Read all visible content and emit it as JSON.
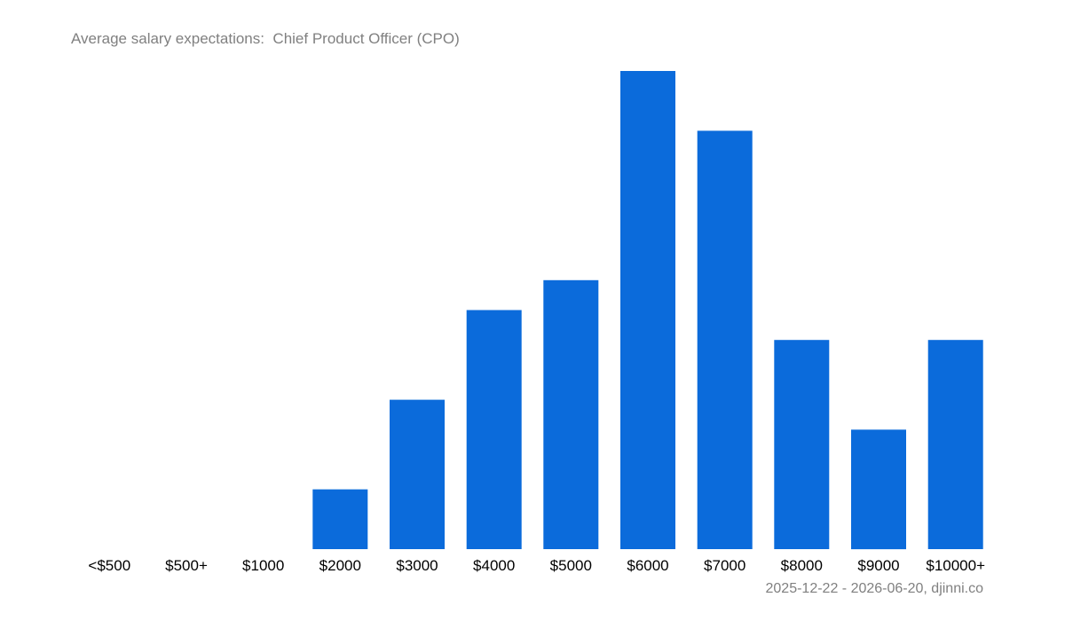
{
  "chart_data": {
    "type": "bar",
    "title": "Average salary expectations:  Chief Product Officer (CPO)",
    "categories": [
      "<$500",
      "$500+",
      "$1000",
      "$2000",
      "$3000",
      "$4000",
      "$5000",
      "$6000",
      "$7000",
      "$8000",
      "$9000",
      "$10000+"
    ],
    "values": [
      0,
      0,
      0,
      2,
      5,
      8,
      9,
      16,
      14,
      7,
      4,
      7
    ],
    "xlabel": "",
    "ylabel": "",
    "ylim": [
      0,
      16
    ],
    "grid": false,
    "bar_color": "#0b6bdb"
  },
  "footer": {
    "note": "2025-12-22 - 2026-06-20, djinni.co"
  }
}
